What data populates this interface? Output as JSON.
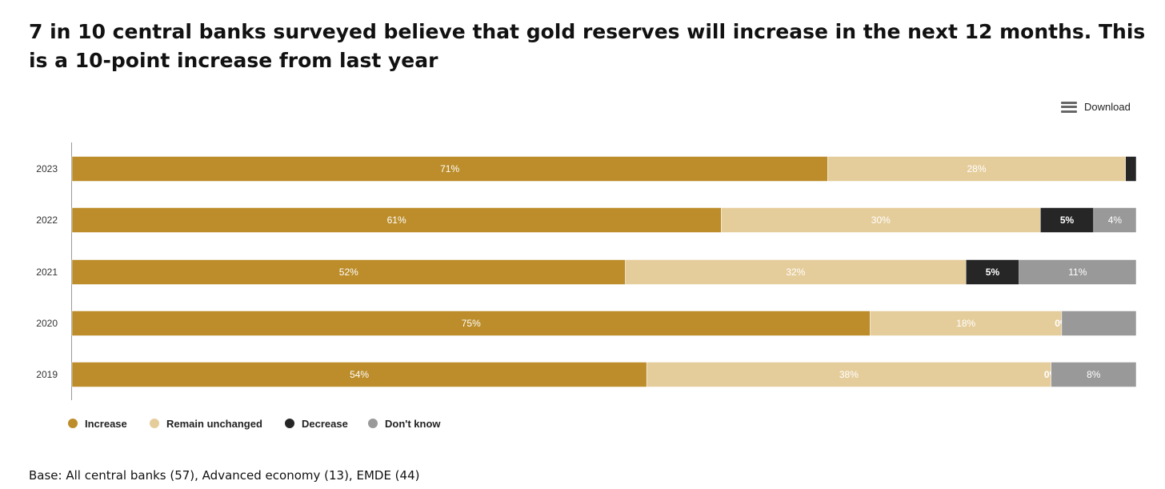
{
  "title": "7 in 10 central banks surveyed believe that gold reserves will increase in the next 12 months. This is a 10-point increase from last year",
  "download_label": "Download",
  "download_icon": "menu-icon",
  "base_note": "Base: All central banks (57), Advanced economy (13), EMDE (44)",
  "chart_data": {
    "type": "bar",
    "orientation": "horizontal-stacked",
    "categories": [
      "2023",
      "2022",
      "2021",
      "2020",
      "2019"
    ],
    "series": [
      {
        "name": "Increase",
        "color": "#BC8D2A",
        "values": [
          71,
          61,
          52,
          75,
          54
        ],
        "labels": [
          "71%",
          "61%",
          "52%",
          "75%",
          "54%"
        ]
      },
      {
        "name": "Remain unchanged",
        "color": "#E5CD9B",
        "values": [
          28,
          30,
          32,
          18,
          38
        ],
        "labels": [
          "28%",
          "30%",
          "32%",
          "18%",
          "38%"
        ]
      },
      {
        "name": "Decrease",
        "color": "#262626",
        "values": [
          1,
          5,
          5,
          0,
          0
        ],
        "labels": [
          "",
          "5%",
          "5%",
          "0%",
          "0%"
        ]
      },
      {
        "name": "Don't know",
        "color": "#999999",
        "values": [
          0,
          4,
          11,
          7,
          8
        ],
        "labels": [
          "",
          "4%",
          "11%",
          "",
          "8%"
        ]
      }
    ],
    "xlim": [
      0,
      100
    ],
    "legend": "bottom-left"
  }
}
